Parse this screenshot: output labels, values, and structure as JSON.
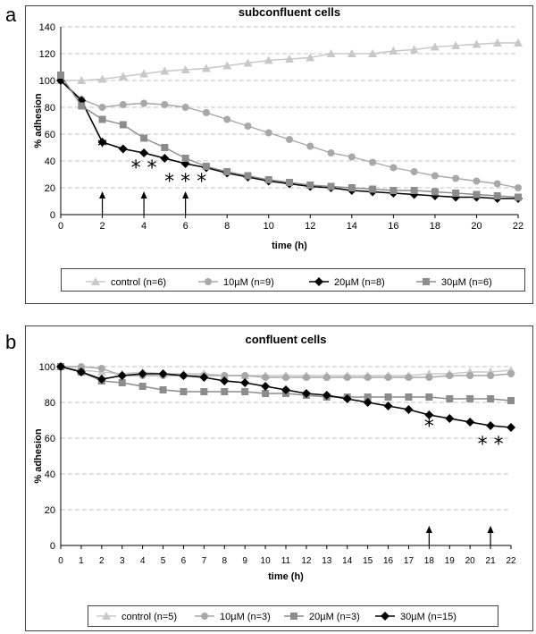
{
  "chart_data": [
    {
      "panel": "a",
      "type": "line",
      "title": "subconfluent cells",
      "xlabel": "time (h)",
      "ylabel": "% adhesion",
      "xlim": [
        0,
        22
      ],
      "ylim": [
        0,
        140
      ],
      "xticks": [
        "0",
        "2",
        "4",
        "6",
        "8",
        "10",
        "12",
        "14",
        "16",
        "18",
        "20",
        "22"
      ],
      "yticks": [
        "0",
        "20",
        "40",
        "60",
        "80",
        "100",
        "120",
        "140"
      ],
      "grid": "horizontal dashed",
      "legend": "bottom",
      "x": [
        0,
        1,
        2,
        3,
        4,
        5,
        6,
        7,
        8,
        9,
        10,
        11,
        12,
        13,
        14,
        15,
        16,
        17,
        18,
        19,
        20,
        21,
        22
      ],
      "series": [
        {
          "name": "control (n=6)",
          "color": "#c8c8c8",
          "marker": "triangle",
          "values": [
            100,
            100,
            101,
            103,
            105,
            107,
            108,
            109,
            111,
            113,
            115,
            116,
            117,
            120,
            120,
            120,
            122,
            123,
            125,
            126,
            127,
            128,
            128
          ]
        },
        {
          "name": "10µM (n=9)",
          "color": "#a8a8a8",
          "marker": "circle",
          "values": [
            100,
            86,
            80,
            82,
            83,
            82,
            80,
            76,
            71,
            66,
            61,
            56,
            51,
            46,
            43,
            39,
            35,
            32,
            29,
            27,
            25,
            23,
            20
          ]
        },
        {
          "name": "20µM (n=8)",
          "color": "#000000",
          "marker": "diamond",
          "values": [
            100,
            85,
            54,
            49,
            46,
            42,
            38,
            35,
            31,
            28,
            25,
            23,
            21,
            20,
            18,
            17,
            16,
            15,
            14,
            13,
            13,
            12,
            12
          ]
        },
        {
          "name": "30µM (n=6)",
          "color": "#8c8c8c",
          "marker": "square",
          "values": [
            104,
            81,
            71,
            67,
            57,
            50,
            42,
            36,
            32,
            29,
            26,
            24,
            22,
            21,
            20,
            19,
            18,
            18,
            17,
            16,
            15,
            14,
            13
          ]
        }
      ],
      "annotations": [
        {
          "text": "*",
          "x": 2,
          "y": 46
        },
        {
          "text": "* *",
          "x": 4,
          "y": 30
        },
        {
          "text": "* * *",
          "x": 6,
          "y": 20
        }
      ],
      "arrows_at_x": [
        2,
        4,
        6
      ]
    },
    {
      "panel": "b",
      "type": "line",
      "title": "confluent cells",
      "xlabel": "time (h)",
      "ylabel": "% adhesion",
      "xlim": [
        0,
        22
      ],
      "ylim": [
        0,
        100
      ],
      "xticks": [
        "0",
        "1",
        "2",
        "3",
        "4",
        "5",
        "6",
        "7",
        "8",
        "9",
        "10",
        "11",
        "12",
        "13",
        "14",
        "15",
        "16",
        "17",
        "18",
        "19",
        "20",
        "21",
        "22"
      ],
      "yticks": [
        "0",
        "20",
        "40",
        "60",
        "80",
        "100"
      ],
      "grid": "horizontal dashed",
      "legend": "bottom",
      "x": [
        0,
        1,
        2,
        3,
        4,
        5,
        6,
        7,
        8,
        9,
        10,
        11,
        12,
        13,
        14,
        15,
        16,
        17,
        18,
        19,
        20,
        21,
        22
      ],
      "series": [
        {
          "name": "control (n=5)",
          "color": "#c8c8c8",
          "marker": "triangle",
          "values": [
            100,
            98,
            97,
            96,
            97,
            96,
            96,
            96,
            95,
            95,
            95,
            95,
            95,
            95,
            95,
            95,
            95,
            95,
            96,
            96,
            97,
            97,
            98
          ]
        },
        {
          "name": "10µM (n=3)",
          "color": "#a8a8a8",
          "marker": "circle",
          "values": [
            100,
            100,
            99,
            95,
            95,
            95,
            95,
            95,
            95,
            95,
            94,
            94,
            94,
            94,
            94,
            94,
            94,
            94,
            94,
            95,
            95,
            95,
            96
          ]
        },
        {
          "name": "20µM (n=3)",
          "color": "#8c8c8c",
          "marker": "square",
          "values": [
            100,
            97,
            92,
            91,
            89,
            87,
            86,
            86,
            86,
            86,
            85,
            85,
            84,
            83,
            83,
            83,
            83,
            83,
            83,
            82,
            82,
            82,
            81
          ]
        },
        {
          "name": "30µM (n=15)",
          "color": "#000000",
          "marker": "diamond",
          "values": [
            100,
            97,
            93,
            95,
            96,
            96,
            95,
            94,
            92,
            91,
            89,
            87,
            85,
            84,
            82,
            80,
            78,
            76,
            73,
            71,
            69,
            67,
            66
          ]
        }
      ],
      "annotations": [
        {
          "text": "*",
          "x": 18,
          "y": 63
        },
        {
          "text": "* *",
          "x": 21,
          "y": 53
        }
      ],
      "arrows_at_x": [
        18,
        21
      ]
    }
  ]
}
